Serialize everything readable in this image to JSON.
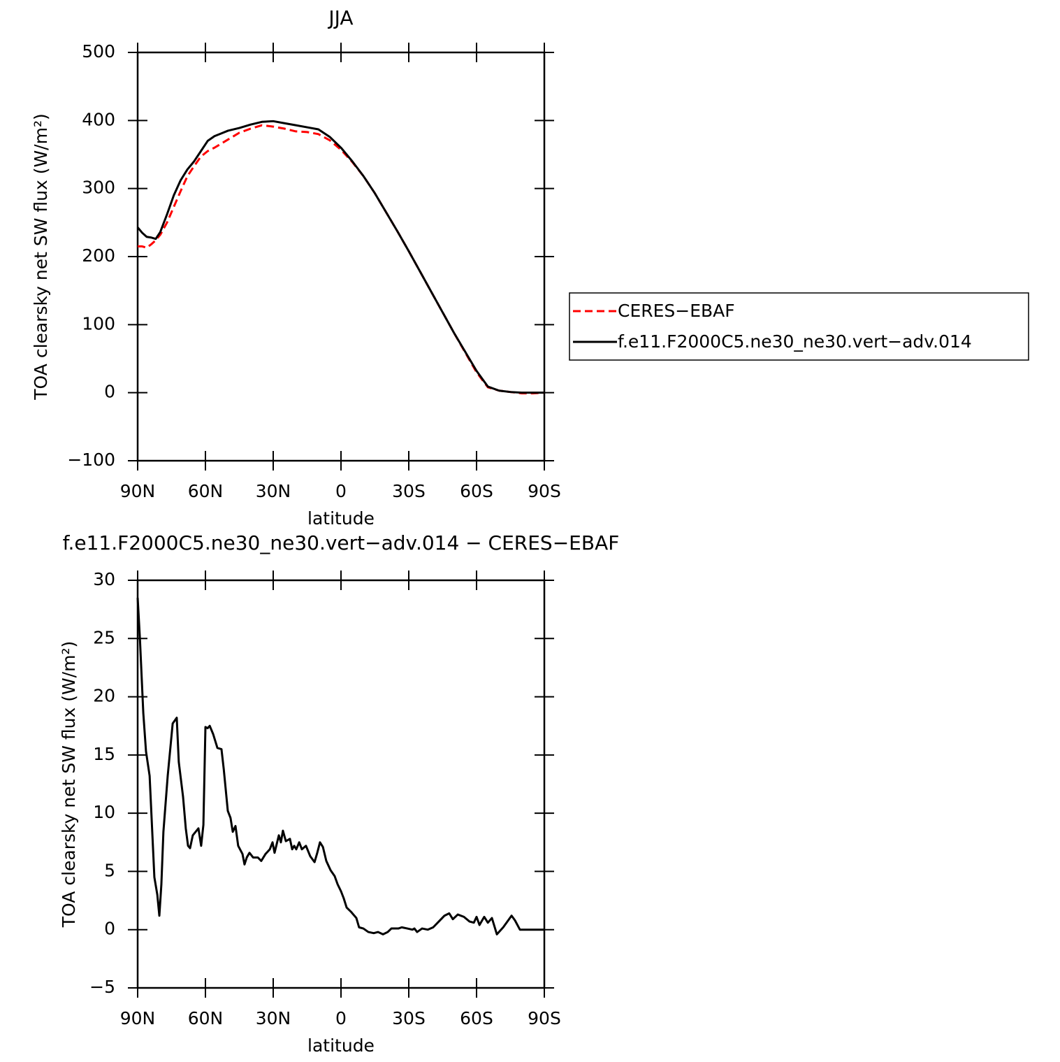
{
  "chart_data": [
    {
      "type": "line",
      "title": "JJA",
      "xlabel": "latitude",
      "ylabel": "TOA clearsky net SW flux (W/m²)",
      "x": [
        90,
        88,
        86,
        84,
        82,
        80,
        77,
        74,
        71,
        68,
        65,
        62,
        59,
        56,
        53,
        50,
        45,
        40,
        35,
        30,
        25,
        20,
        15,
        10,
        5,
        0,
        -5,
        -10,
        -15,
        -20,
        -25,
        -30,
        -35,
        -40,
        -45,
        -50,
        -55,
        -60,
        -65,
        -70,
        -75,
        -80,
        -85,
        -90
      ],
      "series": [
        {
          "name": "CERES−EBAF",
          "color": "#ff0000",
          "line_style": "dashed",
          "values": [
            215,
            215,
            213,
            218,
            224,
            232,
            250,
            273,
            296,
            318,
            333,
            347,
            355,
            360,
            366,
            372,
            382,
            388,
            393,
            391,
            388,
            384,
            383,
            380,
            371,
            357,
            339,
            318,
            293,
            265,
            237,
            208,
            178,
            148,
            118,
            88,
            59,
            30,
            8,
            3,
            1,
            -1,
            -1,
            0
          ]
        },
        {
          "name": "f.e11.F2000C5.ne30_ne30.vert−adv.014",
          "color": "#000000",
          "line_style": "solid",
          "values": [
            243,
            235,
            229,
            228,
            226,
            236,
            262,
            290,
            312,
            328,
            340,
            355,
            370,
            377,
            381,
            385,
            389,
            394,
            398,
            399,
            396,
            393,
            390,
            387,
            376,
            360,
            340,
            318,
            293,
            265,
            237,
            208,
            178,
            148,
            118,
            88,
            60,
            32,
            9,
            3,
            1,
            0,
            0,
            0
          ]
        }
      ],
      "xlim": [
        90,
        -90
      ],
      "xticks": [
        {
          "value": 90,
          "label": "90N"
        },
        {
          "value": 60,
          "label": "60N"
        },
        {
          "value": 30,
          "label": "30N"
        },
        0,
        {
          "value": -30,
          "label": "30S"
        },
        {
          "value": -60,
          "label": "60S"
        },
        {
          "value": -90,
          "label": "90S"
        }
      ],
      "ylim": [
        -100,
        500
      ],
      "yticks": [
        {
          "value": -100,
          "label": "−100"
        },
        0,
        100,
        200,
        300,
        400,
        500
      ],
      "legend": "right"
    },
    {
      "type": "line",
      "title": "f.e11.F2000C5.ne30_ne30.vert−adv.014 − CERES−EBAF",
      "xlabel": "latitude",
      "ylabel": "TOA clearsky net SW flux (W/m²)",
      "x": [
        90,
        89,
        87.5,
        86.3,
        84.7,
        82.6,
        81.3,
        80.4,
        79.5,
        78.6,
        76.7,
        74.5,
        72.7,
        71.8,
        69.9,
        68.7,
        67.7,
        66.8,
        65.6,
        63.1,
        61.9,
        60.9,
        60,
        59,
        58.1,
        56.6,
        54.7,
        52.9,
        51.9,
        50.1,
        48.9,
        47.9,
        46.7,
        45.5,
        43.6,
        42.7,
        41.7,
        40.5,
        38.9,
        36.8,
        35.3,
        33.4,
        31.5,
        30.3,
        29.4,
        27.5,
        26.6,
        25.7,
        24.4,
        22.6,
        21.6,
        20.7,
        19.8,
        18.5,
        17.3,
        15.5,
        13.6,
        11.7,
        10.5,
        9.3,
        8,
        6.5,
        4.6,
        2.8,
        1.5,
        0,
        -1.2,
        -2.5,
        -4.6,
        -6.8,
        -8,
        -9.9,
        -12.1,
        -14.5,
        -16.4,
        -18.6,
        -20.7,
        -22.3,
        -25.4,
        -26.9,
        -29.4,
        -31.6,
        -32.5,
        -33.7,
        -35.9,
        -38.4,
        -40.8,
        -43.3,
        -45.8,
        -47.9,
        -49.5,
        -51.7,
        -54.4,
        -56.9,
        -58.8,
        -60,
        -61.3,
        -63.4,
        -65,
        -66.8,
        -69,
        -71.8,
        -75.5,
        -77,
        -79.2,
        -90
      ],
      "series": [
        {
          "color": "#000000",
          "line_style": "solid",
          "values": [
            28.5,
            25,
            18.6,
            15.3,
            13.2,
            4.5,
            3,
            1.2,
            3.9,
            8.4,
            13.2,
            17.7,
            18.2,
            14.4,
            11.4,
            8.7,
            7.2,
            7,
            8.1,
            8.7,
            7.2,
            9,
            17.4,
            17.3,
            17.5,
            16.8,
            15.6,
            15.5,
            13.8,
            10.2,
            9.6,
            8.4,
            8.9,
            7.2,
            6.5,
            5.6,
            6.2,
            6.6,
            6.2,
            6.2,
            5.9,
            6.5,
            6.9,
            7.5,
            6.6,
            8.1,
            7.5,
            8.5,
            7.6,
            7.8,
            6.9,
            7.2,
            6.9,
            7.5,
            6.9,
            7.2,
            6.3,
            5.8,
            6.6,
            7.5,
            7.1,
            5.9,
            5.1,
            4.6,
            3.9,
            3.3,
            2.7,
            1.9,
            1.5,
            1.0,
            0.2,
            0.1,
            -0.2,
            -0.3,
            -0.2,
            -0.4,
            -0.2,
            0.1,
            0.1,
            0.2,
            0.1,
            0,
            0.1,
            -0.2,
            0.1,
            0,
            0.2,
            0.7,
            1.2,
            1.4,
            0.9,
            1.3,
            1.1,
            0.7,
            0.6,
            1.1,
            0.4,
            1.1,
            0.6,
            1.0,
            -0.4,
            0.2,
            1.2,
            0.8,
            0,
            0
          ]
        }
      ],
      "xlim": [
        90,
        -90
      ],
      "xticks": [
        {
          "value": 90,
          "label": "90N"
        },
        {
          "value": 60,
          "label": "60N"
        },
        {
          "value": 30,
          "label": "30N"
        },
        0,
        {
          "value": -30,
          "label": "30S"
        },
        {
          "value": -60,
          "label": "60S"
        },
        {
          "value": -90,
          "label": "90S"
        }
      ],
      "ylim": [
        -5,
        30
      ],
      "yticks": [
        {
          "value": -5,
          "label": "−5"
        },
        0,
        5,
        10,
        15,
        20,
        25,
        30
      ]
    }
  ]
}
